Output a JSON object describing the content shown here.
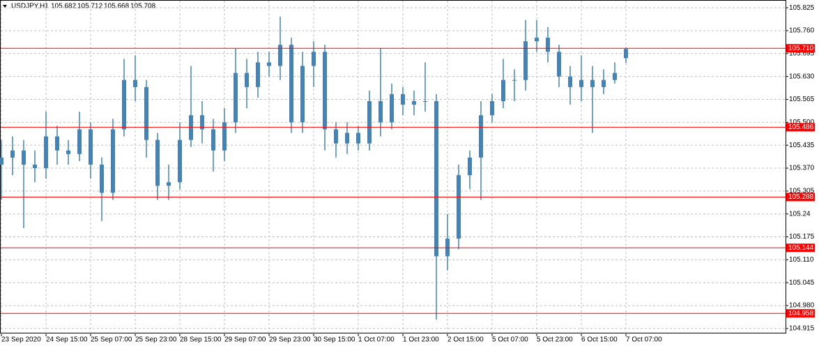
{
  "chart_data": {
    "type": "candlestick",
    "symbol": "USDJPY,H1",
    "color": "#4682b4",
    "level_color": "#ff0000",
    "grid": true,
    "open": [
      105.38,
      105.4,
      105.42,
      105.38,
      105.37,
      105.46,
      105.42,
      105.41,
      105.48,
      105.38,
      105.3,
      105.48,
      105.62,
      105.6,
      105.45,
      105.32,
      105.33,
      105.45,
      105.52,
      105.48,
      105.42,
      105.5,
      105.64,
      105.6,
      105.67,
      105.66,
      105.72,
      105.5,
      105.66,
      105.7,
      105.48,
      105.44,
      105.47,
      105.44,
      105.56,
      105.5,
      105.58,
      105.55,
      105.56,
      105.56,
      105.12,
      105.17,
      105.35,
      105.4,
      105.52,
      105.56,
      105.62,
      105.62,
      105.73,
      105.74,
      105.7,
      105.63,
      105.6,
      105.62,
      105.6,
      105.62,
      105.682
    ],
    "high": [
      105.45,
      105.46,
      105.45,
      105.42,
      105.53,
      105.49,
      105.45,
      105.53,
      105.5,
      105.4,
      105.51,
      105.68,
      105.69,
      105.62,
      105.47,
      105.38,
      105.5,
      105.66,
      105.56,
      105.51,
      105.54,
      105.71,
      105.68,
      105.7,
      105.7,
      105.8,
      105.74,
      105.7,
      105.73,
      105.72,
      105.5,
      105.5,
      105.49,
      105.59,
      105.71,
      105.61,
      105.6,
      105.59,
      105.67,
      105.58,
      105.24,
      105.38,
      105.42,
      105.56,
      105.58,
      105.68,
      105.65,
      105.79,
      105.79,
      105.77,
      105.72,
      105.66,
      105.69,
      105.66,
      105.65,
      105.67,
      105.712
    ],
    "low": [
      105.28,
      105.35,
      105.2,
      105.33,
      105.34,
      105.38,
      105.38,
      105.39,
      105.34,
      105.22,
      105.28,
      105.46,
      105.56,
      105.4,
      105.28,
      105.28,
      105.31,
      105.43,
      105.44,
      105.36,
      105.39,
      105.47,
      105.54,
      105.57,
      105.63,
      105.62,
      105.47,
      105.47,
      105.6,
      105.42,
      105.4,
      105.41,
      105.42,
      105.42,
      105.46,
      105.48,
      105.52,
      105.52,
      105.53,
      104.94,
      105.08,
      105.14,
      105.31,
      105.28,
      105.5,
      105.54,
      105.56,
      105.59,
      105.7,
      105.67,
      105.6,
      105.55,
      105.56,
      105.47,
      105.58,
      105.61,
      105.668
    ],
    "close": [
      105.4,
      105.42,
      105.38,
      105.37,
      105.46,
      105.42,
      105.41,
      105.48,
      105.38,
      105.3,
      105.48,
      105.62,
      105.6,
      105.45,
      105.32,
      105.33,
      105.45,
      105.52,
      105.48,
      105.42,
      105.5,
      105.64,
      105.6,
      105.67,
      105.66,
      105.72,
      105.5,
      105.66,
      105.7,
      105.48,
      105.44,
      105.47,
      105.44,
      105.56,
      105.5,
      105.58,
      105.55,
      105.56,
      105.56,
      105.12,
      105.17,
      105.35,
      105.4,
      105.52,
      105.56,
      105.62,
      105.62,
      105.73,
      105.74,
      105.7,
      105.63,
      105.6,
      105.62,
      105.6,
      105.62,
      105.64,
      105.708
    ],
    "xticks": [
      {
        "value": 0,
        "label": "23 Sep 2020"
      },
      {
        "value": 4,
        "label": "24 Sep 15:00"
      },
      {
        "value": 8,
        "label": "25 Sep 07:00"
      },
      {
        "value": 12,
        "label": "25 Sep 23:00"
      },
      {
        "value": 16,
        "label": "28 Sep 15:00"
      },
      {
        "value": 20,
        "label": "29 Sep 07:00"
      },
      {
        "value": 24,
        "label": "29 Sep 23:00"
      },
      {
        "value": 28,
        "label": "30 Sep 15:00"
      },
      {
        "value": 32,
        "label": "1 Oct 07:00"
      },
      {
        "value": 36,
        "label": "1 Oct 23:00"
      },
      {
        "value": 40,
        "label": "2 Oct 15:00"
      },
      {
        "value": 44,
        "label": "5 Oct 07:00"
      },
      {
        "value": 48,
        "label": "5 Oct 23:00"
      },
      {
        "value": 52,
        "label": "6 Oct 15:00"
      },
      {
        "value": 56,
        "label": "7 Oct 07:00"
      }
    ],
    "ylim": [
      104.901,
      105.847
    ],
    "yticks": [
      105.825,
      {
        "value": 105.76,
        "label": "105.760"
      },
      105.695,
      {
        "value": 105.63,
        "label": "105.630"
      },
      105.565,
      {
        "value": 105.5,
        "label": "105.500"
      },
      105.435,
      {
        "value": 105.37,
        "label": "105.370"
      },
      105.305,
      105.24,
      105.175,
      {
        "value": 105.11,
        "label": "105.110"
      },
      105.045,
      {
        "value": 104.98,
        "label": "104.980"
      },
      104.915
    ],
    "levels": [
      {
        "value": 105.71,
        "label": "105.710"
      },
      105.486,
      105.288,
      105.144,
      104.958
    ]
  }
}
